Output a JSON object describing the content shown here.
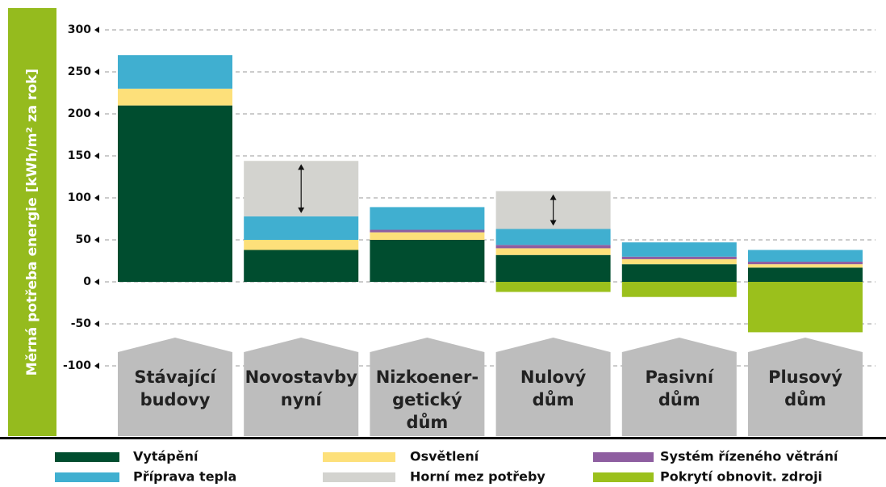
{
  "chart_data": {
    "type": "bar",
    "stacked": true,
    "y_label": "Měrná potřeba energie [kWh/m² za rok]",
    "categories": [
      "Stávající\nbudovy",
      "Novostavby\nnyní",
      "Nizkoener-\ngetický\ndům",
      "Nulový\ndům",
      "Pasivní\ndům",
      "Plusový\ndům"
    ],
    "series": [
      {
        "name": "Vytápění",
        "color": "#004d2f",
        "values": [
          210,
          38,
          50,
          32,
          21,
          17
        ]
      },
      {
        "name": "Osvětlení",
        "color": "#fde07a",
        "values": [
          20,
          12,
          9,
          8,
          6,
          4
        ]
      },
      {
        "name": "Systém řízeného větrání",
        "color": "#8e5ea0",
        "values": [
          null,
          null,
          3,
          4,
          3,
          3
        ]
      },
      {
        "name": "Příprava tepla",
        "color": "#40afd0",
        "values": [
          40,
          28,
          27,
          19,
          17,
          14
        ]
      },
      {
        "name": "Horní mez potřeby",
        "color": "#d3d3cf",
        "values": [
          null,
          66,
          null,
          45,
          null,
          null
        ]
      },
      {
        "name": "Pokrytí obnovit. zdroji",
        "color": "#9bc01c",
        "values": [
          null,
          null,
          null,
          -12,
          -18,
          -60
        ]
      }
    ],
    "ylim": [
      -100,
      300
    ],
    "yticks": [
      -100,
      -50,
      0,
      50,
      100,
      150,
      200,
      250,
      300
    ],
    "grid": true
  }
}
